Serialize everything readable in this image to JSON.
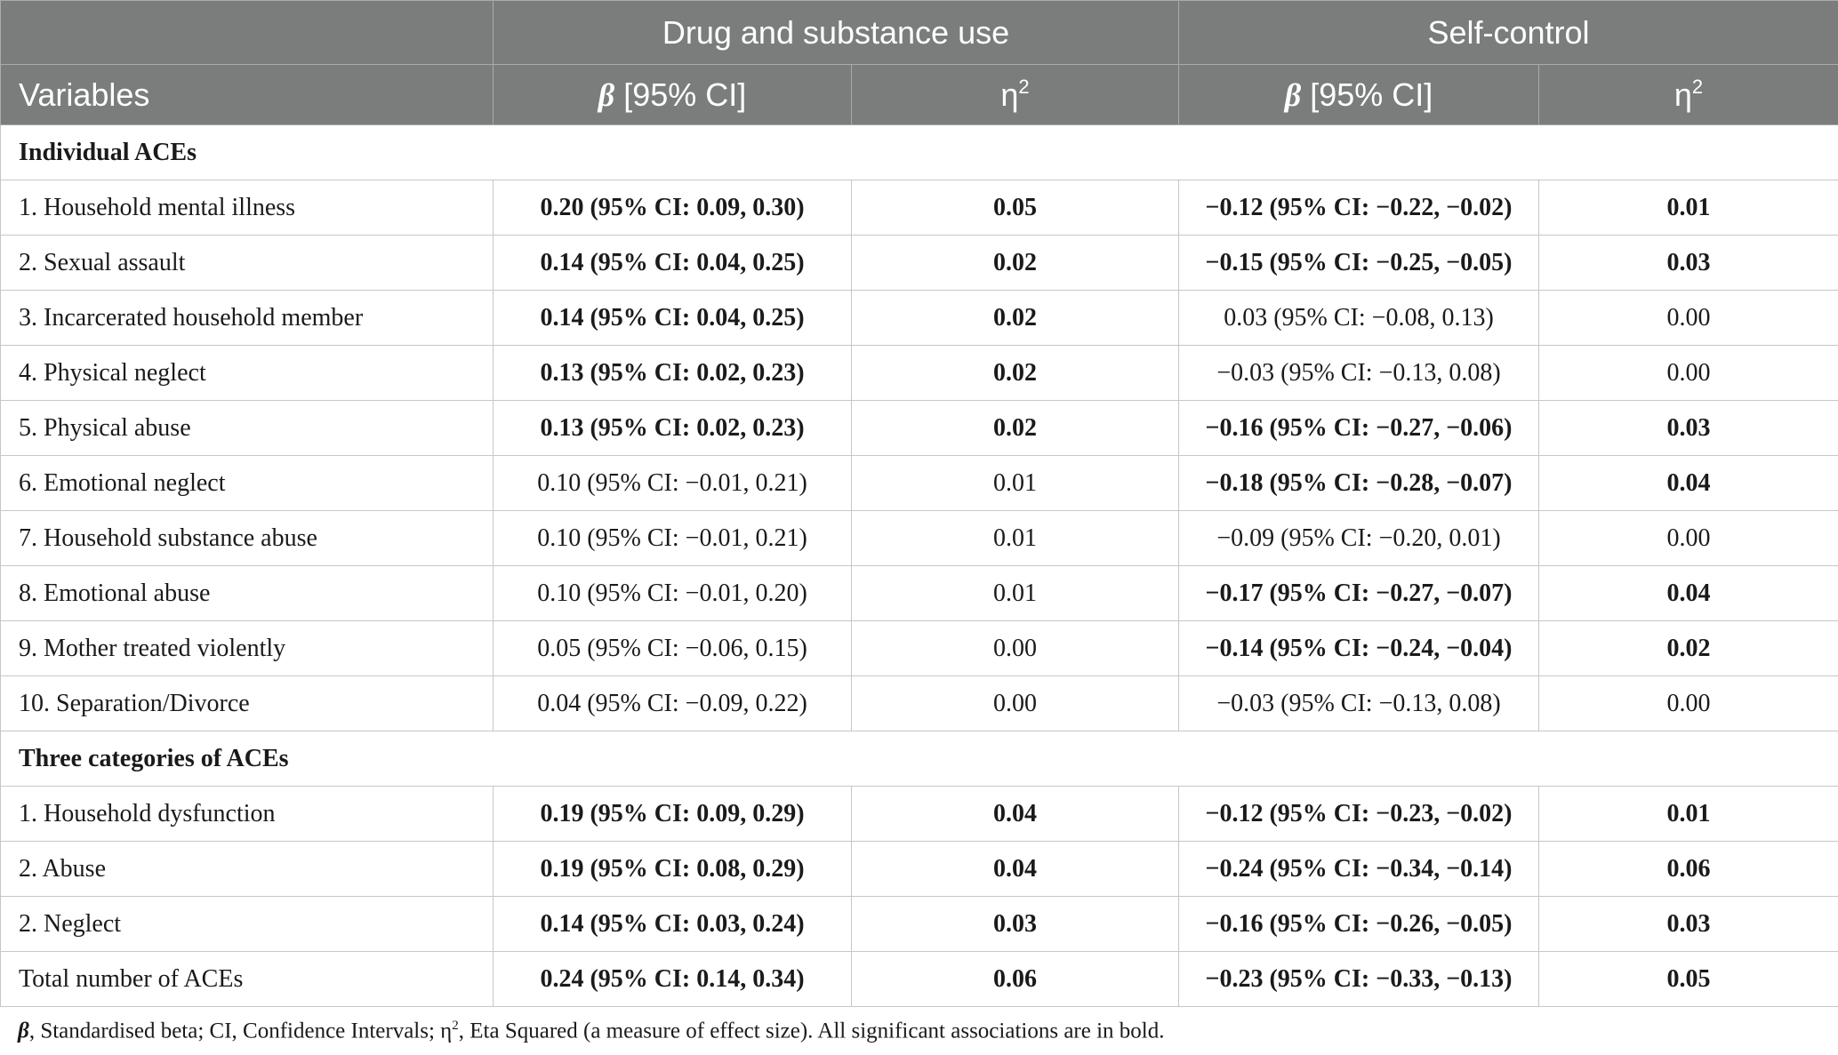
{
  "header": {
    "group_drug": "Drug and substance use",
    "group_self": "Self-control",
    "variables": "Variables",
    "beta_symbol": "β",
    "beta_ci": " [95% CI]",
    "eta_base": "η",
    "eta_exp": "2"
  },
  "sections": [
    {
      "title": "Individual ACEs",
      "rows": [
        {
          "label": "1. Household mental illness",
          "drug_beta": "0.20 (95% CI: 0.09, 0.30)",
          "drug_eta": "0.05",
          "self_beta": "−0.12 (95% CI: −0.22, −0.02)",
          "self_eta": "0.01"
        },
        {
          "label": "2. Sexual assault",
          "drug_beta": "0.14 (95% CI: 0.04, 0.25)",
          "drug_eta": "0.02",
          "self_beta": "−0.15 (95% CI: −0.25, −0.05)",
          "self_eta": "0.03"
        },
        {
          "label": "3. Incarcerated household member",
          "drug_beta": "0.14 (95% CI: 0.04, 0.25)",
          "drug_eta": "0.02",
          "self_beta": "0.03 (95% CI: −0.08, 0.13)",
          "self_eta": "0.00"
        },
        {
          "label": "4. Physical neglect",
          "drug_beta": "0.13 (95% CI: 0.02, 0.23)",
          "drug_eta": "0.02",
          "self_beta": "−0.03 (95% CI: −0.13, 0.08)",
          "self_eta": "0.00"
        },
        {
          "label": "5. Physical abuse",
          "drug_beta": "0.13 (95% CI: 0.02, 0.23)",
          "drug_eta": "0.02",
          "self_beta": "−0.16 (95% CI: −0.27, −0.06)",
          "self_eta": "0.03"
        },
        {
          "label": "6. Emotional neglect",
          "drug_beta": "0.10 (95% CI: −0.01, 0.21)",
          "drug_eta": "0.01",
          "self_beta": "−0.18 (95% CI: −0.28, −0.07)",
          "self_eta": "0.04"
        },
        {
          "label": "7. Household substance abuse",
          "drug_beta": "0.10 (95% CI: −0.01, 0.21)",
          "drug_eta": "0.01",
          "self_beta": "−0.09 (95% CI: −0.20, 0.01)",
          "self_eta": "0.00"
        },
        {
          "label": "8. Emotional abuse",
          "drug_beta": "0.10 (95% CI: −0.01, 0.20)",
          "drug_eta": "0.01",
          "self_beta": "−0.17 (95% CI: −0.27, −0.07)",
          "self_eta": "0.04"
        },
        {
          "label": "9. Mother treated violently",
          "drug_beta": "0.05 (95% CI: −0.06, 0.15)",
          "drug_eta": "0.00",
          "self_beta": "−0.14 (95% CI: −0.24, −0.04)",
          "self_eta": "0.02"
        },
        {
          "label": "10. Separation/Divorce",
          "drug_beta": "0.04 (95% CI: −0.09, 0.22)",
          "drug_eta": "0.00",
          "self_beta": "−0.03 (95% CI: −0.13, 0.08)",
          "self_eta": "0.00"
        }
      ]
    },
    {
      "title": "Three categories of ACEs",
      "rows": [
        {
          "label": "1. Household dysfunction",
          "drug_beta": "0.19 (95% CI: 0.09, 0.29)",
          "drug_eta": "0.04",
          "self_beta": "−0.12 (95% CI: −0.23, −0.02)",
          "self_eta": "0.01"
        },
        {
          "label": "2. Abuse",
          "drug_beta": "0.19 (95% CI: 0.08, 0.29)",
          "drug_eta": "0.04",
          "self_beta": "−0.24 (95% CI: −0.34, −0.14)",
          "self_eta": "0.06"
        },
        {
          "label": "2. Neglect",
          "drug_beta": "0.14 (95% CI: 0.03, 0.24)",
          "drug_eta": "0.03",
          "self_beta": "−0.16 (95% CI: −0.26, −0.05)",
          "self_eta": "0.03"
        },
        {
          "label": "Total number of ACEs",
          "drug_beta": "0.24 (95% CI: 0.14, 0.34)",
          "drug_eta": "0.06",
          "self_beta": "−0.23 (95% CI: −0.33, −0.13)",
          "self_eta": "0.05"
        }
      ]
    }
  ],
  "bold_cells": {
    "individual": [
      {
        "drug": true,
        "self": true
      },
      {
        "drug": true,
        "self": true
      },
      {
        "drug": true,
        "self": false
      },
      {
        "drug": true,
        "self": false
      },
      {
        "drug": true,
        "self": true
      },
      {
        "drug": false,
        "self": true
      },
      {
        "drug": false,
        "self": false
      },
      {
        "drug": false,
        "self": true
      },
      {
        "drug": false,
        "self": true
      },
      {
        "drug": false,
        "self": false
      }
    ],
    "categories": [
      {
        "drug": true,
        "self": true
      },
      {
        "drug": true,
        "self": true
      },
      {
        "drug": true,
        "self": true
      },
      {
        "drug": true,
        "self": true
      }
    ]
  },
  "footnote": {
    "beta_symbol": "β",
    "text_a": ", Standardised beta; CI, Confidence Intervals; η",
    "sup": "2",
    "text_b": ", Eta Squared (a measure of effect size). All significant associations are in bold."
  }
}
